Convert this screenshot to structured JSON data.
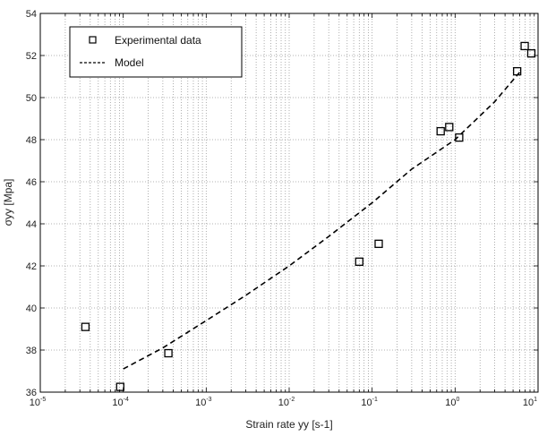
{
  "chart_data": {
    "type": "scatter",
    "title": "",
    "xlabel": "Strain rate yy [s-1]",
    "ylabel": "σyy [Mpa]",
    "xscale": "log",
    "xlim": [
      1e-05,
      10
    ],
    "ylim": [
      36,
      54
    ],
    "grid": true,
    "legend_position": "top-left",
    "x_ticks": [
      {
        "value": 1e-05,
        "base": "10",
        "exp": "-5"
      },
      {
        "value": 0.0001,
        "base": "10",
        "exp": "-4"
      },
      {
        "value": 0.001,
        "base": "10",
        "exp": "-3"
      },
      {
        "value": 0.01,
        "base": "10",
        "exp": "-2"
      },
      {
        "value": 0.1,
        "base": "10",
        "exp": "-1"
      },
      {
        "value": 1,
        "base": "10",
        "exp": "0"
      },
      {
        "value": 10,
        "base": "10",
        "exp": "1"
      }
    ],
    "y_ticks": [
      "36",
      "38",
      "40",
      "42",
      "44",
      "46",
      "48",
      "50",
      "52",
      "54"
    ],
    "series": [
      {
        "name": "Experimental data",
        "kind": "marker",
        "marker": "square",
        "color": "#000000",
        "points": [
          {
            "x": 3.5e-05,
            "y": 39.1
          },
          {
            "x": 9.2e-05,
            "y": 36.25
          },
          {
            "x": 0.00035,
            "y": 37.85
          },
          {
            "x": 0.07,
            "y": 42.2
          },
          {
            "x": 0.12,
            "y": 43.05
          },
          {
            "x": 0.67,
            "y": 48.4
          },
          {
            "x": 0.85,
            "y": 48.6
          },
          {
            "x": 1.12,
            "y": 48.1
          },
          {
            "x": 5.6,
            "y": 51.25
          },
          {
            "x": 6.9,
            "y": 52.45
          },
          {
            "x": 8.3,
            "y": 52.1
          }
        ]
      },
      {
        "name": "Model",
        "kind": "line",
        "dash": "dashed",
        "color": "#000000",
        "points": [
          {
            "x": 0.0001,
            "y": 37.1
          },
          {
            "x": 0.0003,
            "y": 38.1
          },
          {
            "x": 0.001,
            "y": 39.4
          },
          {
            "x": 0.003,
            "y": 40.6
          },
          {
            "x": 0.01,
            "y": 42.0
          },
          {
            "x": 0.03,
            "y": 43.4
          },
          {
            "x": 0.1,
            "y": 45.0
          },
          {
            "x": 0.3,
            "y": 46.6
          },
          {
            "x": 1,
            "y": 48.0
          },
          {
            "x": 3,
            "y": 49.8
          },
          {
            "x": 6,
            "y": 51.2
          }
        ]
      }
    ]
  }
}
